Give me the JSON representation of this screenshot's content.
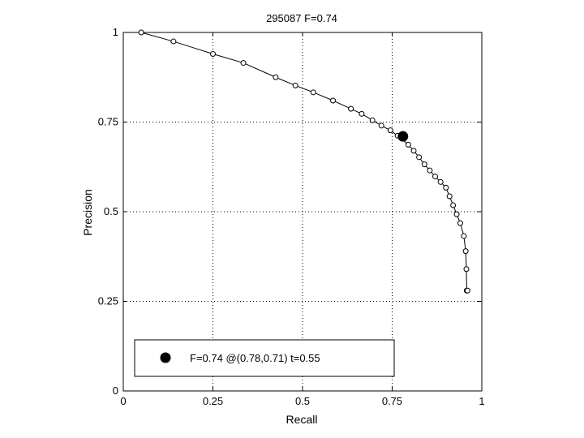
{
  "chart_data": {
    "type": "line",
    "title": "295087 F=0.74",
    "xlabel": "Recall",
    "ylabel": "Precision",
    "xlim": [
      0,
      1
    ],
    "ylim": [
      0,
      1
    ],
    "xticks": [
      0,
      0.25,
      0.5,
      0.75,
      1
    ],
    "yticks": [
      0,
      0.25,
      0.5,
      0.75,
      1
    ],
    "xtick_labels": [
      "0",
      "0.25",
      "0.5",
      "0.75",
      "1"
    ],
    "ytick_labels": [
      "0",
      "0.25",
      "0.5",
      "0.75",
      "1"
    ],
    "grid": true,
    "legend_position": "bottom-left",
    "series": [
      {
        "marker": "open-circle",
        "color": "#000000",
        "x": [
          0.05,
          0.14,
          0.25,
          0.335,
          0.425,
          0.48,
          0.53,
          0.585,
          0.635,
          0.665,
          0.695,
          0.72,
          0.745,
          0.765,
          0.795,
          0.81,
          0.825,
          0.84,
          0.855,
          0.87,
          0.885,
          0.9,
          0.91,
          0.92,
          0.93,
          0.94,
          0.95,
          0.955,
          0.957,
          0.958,
          0.96
        ],
        "y": [
          1.0,
          0.975,
          0.94,
          0.915,
          0.875,
          0.852,
          0.833,
          0.81,
          0.787,
          0.773,
          0.755,
          0.74,
          0.727,
          0.712,
          0.687,
          0.67,
          0.652,
          0.632,
          0.615,
          0.598,
          0.583,
          0.567,
          0.543,
          0.518,
          0.493,
          0.468,
          0.432,
          0.39,
          0.34,
          0.28,
          0.28
        ]
      }
    ],
    "highlight_point": {
      "x": 0.78,
      "y": 0.71,
      "marker": "filled-circle",
      "color": "#000000"
    },
    "legend": {
      "label": "F=0.74 @(0.78,0.71) t=0.55"
    }
  }
}
